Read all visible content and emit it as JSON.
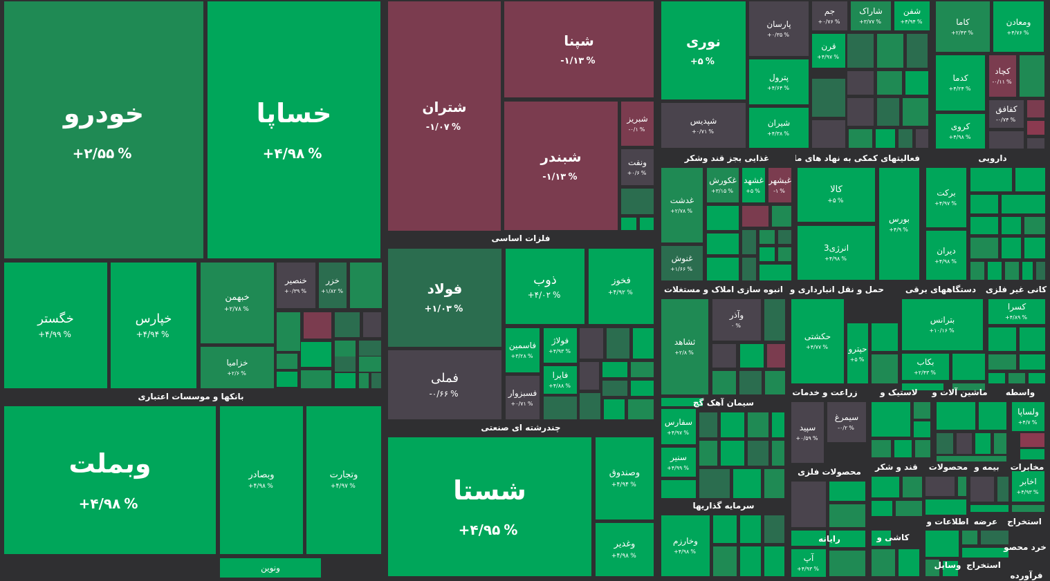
{
  "colors": {
    "background": "#2f2f31",
    "strong_green": "#00a65a",
    "mid_green": "#1f8a54",
    "dark_green": "#2b6d4f",
    "neutral": "#4a444d",
    "red": "#7b3c4f",
    "light_red": "#8b3a50"
  },
  "tiles": [
    {
      "name": "خودرو",
      "value": "+۲/۵۵",
      "unit": "%",
      "color": "mid_green",
      "size": "xl"
    },
    {
      "name": "خساپا",
      "value": "+۴/۹۸",
      "unit": "%",
      "color": "strong_green",
      "size": "xl"
    },
    {
      "name": "خگستر",
      "value": "+۴/۹۹",
      "unit": "%",
      "color": "strong_green",
      "size": "m"
    },
    {
      "name": "خپارس",
      "value": "+۴/۹۴",
      "unit": "%",
      "color": "strong_green",
      "size": "m"
    },
    {
      "name": "خبهمن",
      "value": "+۲/۷۸",
      "unit": "%",
      "color": "mid_green",
      "size": "s"
    },
    {
      "name": "خنصیر",
      "value": "+۰/۳۹",
      "unit": "%",
      "color": "neutral",
      "size": "xs"
    },
    {
      "name": "خزر",
      "value": "+۱/۸۲",
      "unit": "%",
      "color": "dark_green",
      "size": "xs"
    },
    {
      "name": "خزامیا",
      "value": "+۲/۶",
      "unit": "%",
      "color": "mid_green",
      "size": "xs"
    },
    {
      "name": "وبملت",
      "value": "+۴/۹۸",
      "unit": "%",
      "color": "strong_green",
      "size": "xl"
    },
    {
      "name": "وبصادر",
      "value": "+۴/۹۸",
      "unit": "%",
      "color": "strong_green",
      "size": "s"
    },
    {
      "name": "وتجارت",
      "value": "+۴/۹۷",
      "unit": "%",
      "color": "strong_green",
      "size": "s"
    },
    {
      "name": "ونوین",
      "value": "",
      "unit": "",
      "color": "strong_green",
      "size": "s"
    },
    {
      "name": "شتران",
      "value": "-۱/۰۷",
      "unit": "%",
      "color": "red",
      "size": "l"
    },
    {
      "name": "شپنا",
      "value": "-۱/۱۳",
      "unit": "%",
      "color": "red",
      "size": "l"
    },
    {
      "name": "شبندر",
      "value": "-۱/۱۳",
      "unit": "%",
      "color": "red",
      "size": "l"
    },
    {
      "name": "شبریز",
      "value": "-۰/۱",
      "unit": "%",
      "color": "red",
      "size": "xs"
    },
    {
      "name": "ونفت",
      "value": "+۰/۶",
      "unit": "%",
      "color": "neutral",
      "size": "xs"
    },
    {
      "name": "فولاد",
      "value": "+۱/۰۳",
      "unit": "%",
      "color": "dark_green",
      "size": "l"
    },
    {
      "name": "ذوب",
      "value": "+۴/۰۲",
      "unit": "%",
      "color": "strong_green",
      "size": "m"
    },
    {
      "name": "فخوز",
      "value": "+۴/۹۲",
      "unit": "%",
      "color": "strong_green",
      "size": "s"
    },
    {
      "name": "فملی",
      "value": "-۰/۶۶",
      "unit": "%",
      "color": "neutral",
      "size": "m"
    },
    {
      "name": "فاسمین",
      "value": "+۳/۲۸",
      "unit": "%",
      "color": "strong_green",
      "size": "xs"
    },
    {
      "name": "فولاژ",
      "value": "+۴/۹۳",
      "unit": "%",
      "color": "strong_green",
      "size": "xs"
    },
    {
      "name": "فسبزوار",
      "value": "+۰/۷۱",
      "unit": "%",
      "color": "neutral",
      "size": "xs"
    },
    {
      "name": "فایرا",
      "value": "+۴/۸۸",
      "unit": "%",
      "color": "strong_green",
      "size": "xs"
    },
    {
      "name": "شستا",
      "value": "+۴/۹۵",
      "unit": "%",
      "color": "strong_green",
      "size": "xl"
    },
    {
      "name": "وصندوق",
      "value": "+۴/۹۴",
      "unit": "%",
      "color": "strong_green",
      "size": "s"
    },
    {
      "name": "وغدیر",
      "value": "+۴/۹۸",
      "unit": "%",
      "color": "strong_green",
      "size": "s"
    },
    {
      "name": "نوری",
      "value": "+۵",
      "unit": "%",
      "color": "strong_green",
      "size": "l"
    },
    {
      "name": "پارسان",
      "value": "+۰/۳۵",
      "unit": "%",
      "color": "neutral",
      "size": "xs"
    },
    {
      "name": "جم",
      "value": "+۰/۷۶",
      "unit": "%",
      "color": "neutral",
      "size": "xs"
    },
    {
      "name": "شاراک",
      "value": "+۳/۷۷",
      "unit": "%",
      "color": "mid_green",
      "size": "xs"
    },
    {
      "name": "شفن",
      "value": "+۴/۹۴",
      "unit": "%",
      "color": "strong_green",
      "size": "xs"
    },
    {
      "name": "قرن",
      "value": "+۴/۹۷",
      "unit": "%",
      "color": "strong_green",
      "size": "xs"
    },
    {
      "name": "پترول",
      "value": "+۴/۶۴",
      "unit": "%",
      "color": "strong_green",
      "size": "xs"
    },
    {
      "name": "شپدیس",
      "value": "+۰/۷۱",
      "unit": "%",
      "color": "neutral",
      "size": "xs"
    },
    {
      "name": "شیران",
      "value": "+۴/۳۸",
      "unit": "%",
      "color": "strong_green",
      "size": "xs"
    },
    {
      "name": "کاما",
      "value": "+۲/۴۳",
      "unit": "%",
      "color": "mid_green",
      "size": "xs"
    },
    {
      "name": "ومعادن",
      "value": "+۴/۷۶",
      "unit": "%",
      "color": "strong_green",
      "size": "xs"
    },
    {
      "name": "کدما",
      "value": "+۴/۲۴",
      "unit": "%",
      "color": "strong_green",
      "size": "xs"
    },
    {
      "name": "کچاد",
      "value": "-۰/۱۱",
      "unit": "%",
      "color": "red",
      "size": "xs"
    },
    {
      "name": "کروی",
      "value": "+۴/۹۸",
      "unit": "%",
      "color": "strong_green",
      "size": "xs"
    },
    {
      "name": "کفافق",
      "value": "-۰/۷۴",
      "unit": "%",
      "color": "neutral",
      "size": "xs"
    },
    {
      "name": "غدشت",
      "value": "+۲/۷۸",
      "unit": "%",
      "color": "mid_green",
      "size": "xs"
    },
    {
      "name": "غکورش",
      "value": "+۳/۱۵",
      "unit": "%",
      "color": "mid_green",
      "size": "xs"
    },
    {
      "name": "غشهد",
      "value": "+۵",
      "unit": "%",
      "color": "strong_green",
      "size": "xs"
    },
    {
      "name": "غبشهر",
      "value": "-۱",
      "unit": "%",
      "color": "red",
      "size": "xs"
    },
    {
      "name": "غنوش",
      "value": "+۱/۶۶",
      "unit": "%",
      "color": "dark_green",
      "size": "xs"
    },
    {
      "name": "کالا",
      "value": "+۵",
      "unit": "%",
      "color": "strong_green",
      "size": "s"
    },
    {
      "name": "بورس",
      "value": "+۴/۹",
      "unit": "%",
      "color": "strong_green",
      "size": "xs"
    },
    {
      "name": "انرژی3",
      "value": "+۴/۹۸",
      "unit": "%",
      "color": "strong_green",
      "size": "xs"
    },
    {
      "name": "برکت",
      "value": "+۴/۹۷",
      "unit": "%",
      "color": "strong_green",
      "size": "xs"
    },
    {
      "name": "دیران",
      "value": "+۴/۹۸",
      "unit": "%",
      "color": "strong_green",
      "size": "xs"
    },
    {
      "name": "ثشاهد",
      "value": "+۲/۸",
      "unit": "%",
      "color": "mid_green",
      "size": "xs"
    },
    {
      "name": "وآذر",
      "value": "۰",
      "unit": "%",
      "color": "neutral",
      "size": "xs"
    },
    {
      "name": "حکشتی",
      "value": "+۴/۷۷",
      "unit": "%",
      "color": "strong_green",
      "size": "xs"
    },
    {
      "name": "حپترو",
      "value": "+۵",
      "unit": "%",
      "color": "strong_green",
      "size": "xs"
    },
    {
      "name": "بترانس",
      "value": "+۱۰/۱۶",
      "unit": "%",
      "color": "strong_green",
      "size": "xs"
    },
    {
      "name": "کسرا",
      "value": "+۴/۸۹",
      "unit": "%",
      "color": "strong_green",
      "size": "xs"
    },
    {
      "name": "بکاب",
      "value": "+۲/۴۳",
      "unit": "%",
      "color": "strong_green",
      "size": "xs"
    },
    {
      "name": "سفارس",
      "value": "+۴/۹۷",
      "unit": "%",
      "color": "strong_green",
      "size": "xs"
    },
    {
      "name": "سنیر",
      "value": "+۴/۹۹",
      "unit": "%",
      "color": "strong_green",
      "size": "xs"
    },
    {
      "name": "سپید",
      "value": "+۰/۵۹",
      "unit": "%",
      "color": "neutral",
      "size": "xs"
    },
    {
      "name": "سیمرغ",
      "value": "-۰/۲",
      "unit": "%",
      "color": "neutral",
      "size": "xs"
    },
    {
      "name": "ولساپا",
      "value": "+۴/۷",
      "unit": "%",
      "color": "strong_green",
      "size": "xs"
    },
    {
      "name": "اخابر",
      "value": "+۴/۹۳",
      "unit": "%",
      "color": "strong_green",
      "size": "xs"
    },
    {
      "name": "وخارزم",
      "value": "+۴/۹۸",
      "unit": "%",
      "color": "strong_green",
      "size": "xs"
    },
    {
      "name": "آپ",
      "value": "+۴/۹۳",
      "unit": "%",
      "color": "strong_green",
      "size": "xs"
    }
  ],
  "sectors": [
    "بانکها و موسسات اعتباری",
    "فلزات اساسی",
    "چندرشته ای صنعتی",
    "غذایی بجز قند وشکر",
    "فعالیتهای کمکی به نهاد های مالی",
    "دارویی",
    "انبوه سازی املاک و مستغلات",
    "حمل و نقل انبارداری و",
    "دستگاههای برقی",
    "کانی غیر فلزی",
    "سیمان آهک گچ",
    "زراعت و خدمات",
    "لاستیک و",
    "ماشین آلات و",
    "واسطه",
    "محصولات فلزی",
    "قند و شکر",
    "محصولات",
    "بیمه و",
    "مخابرات",
    "سرمایه گذاریها",
    "اطلاعات و",
    "عرضه",
    "استخراج",
    "رایانه",
    "کاشی و",
    "خرد محصو",
    "وسایل",
    "استخراج",
    "فرآورده"
  ]
}
